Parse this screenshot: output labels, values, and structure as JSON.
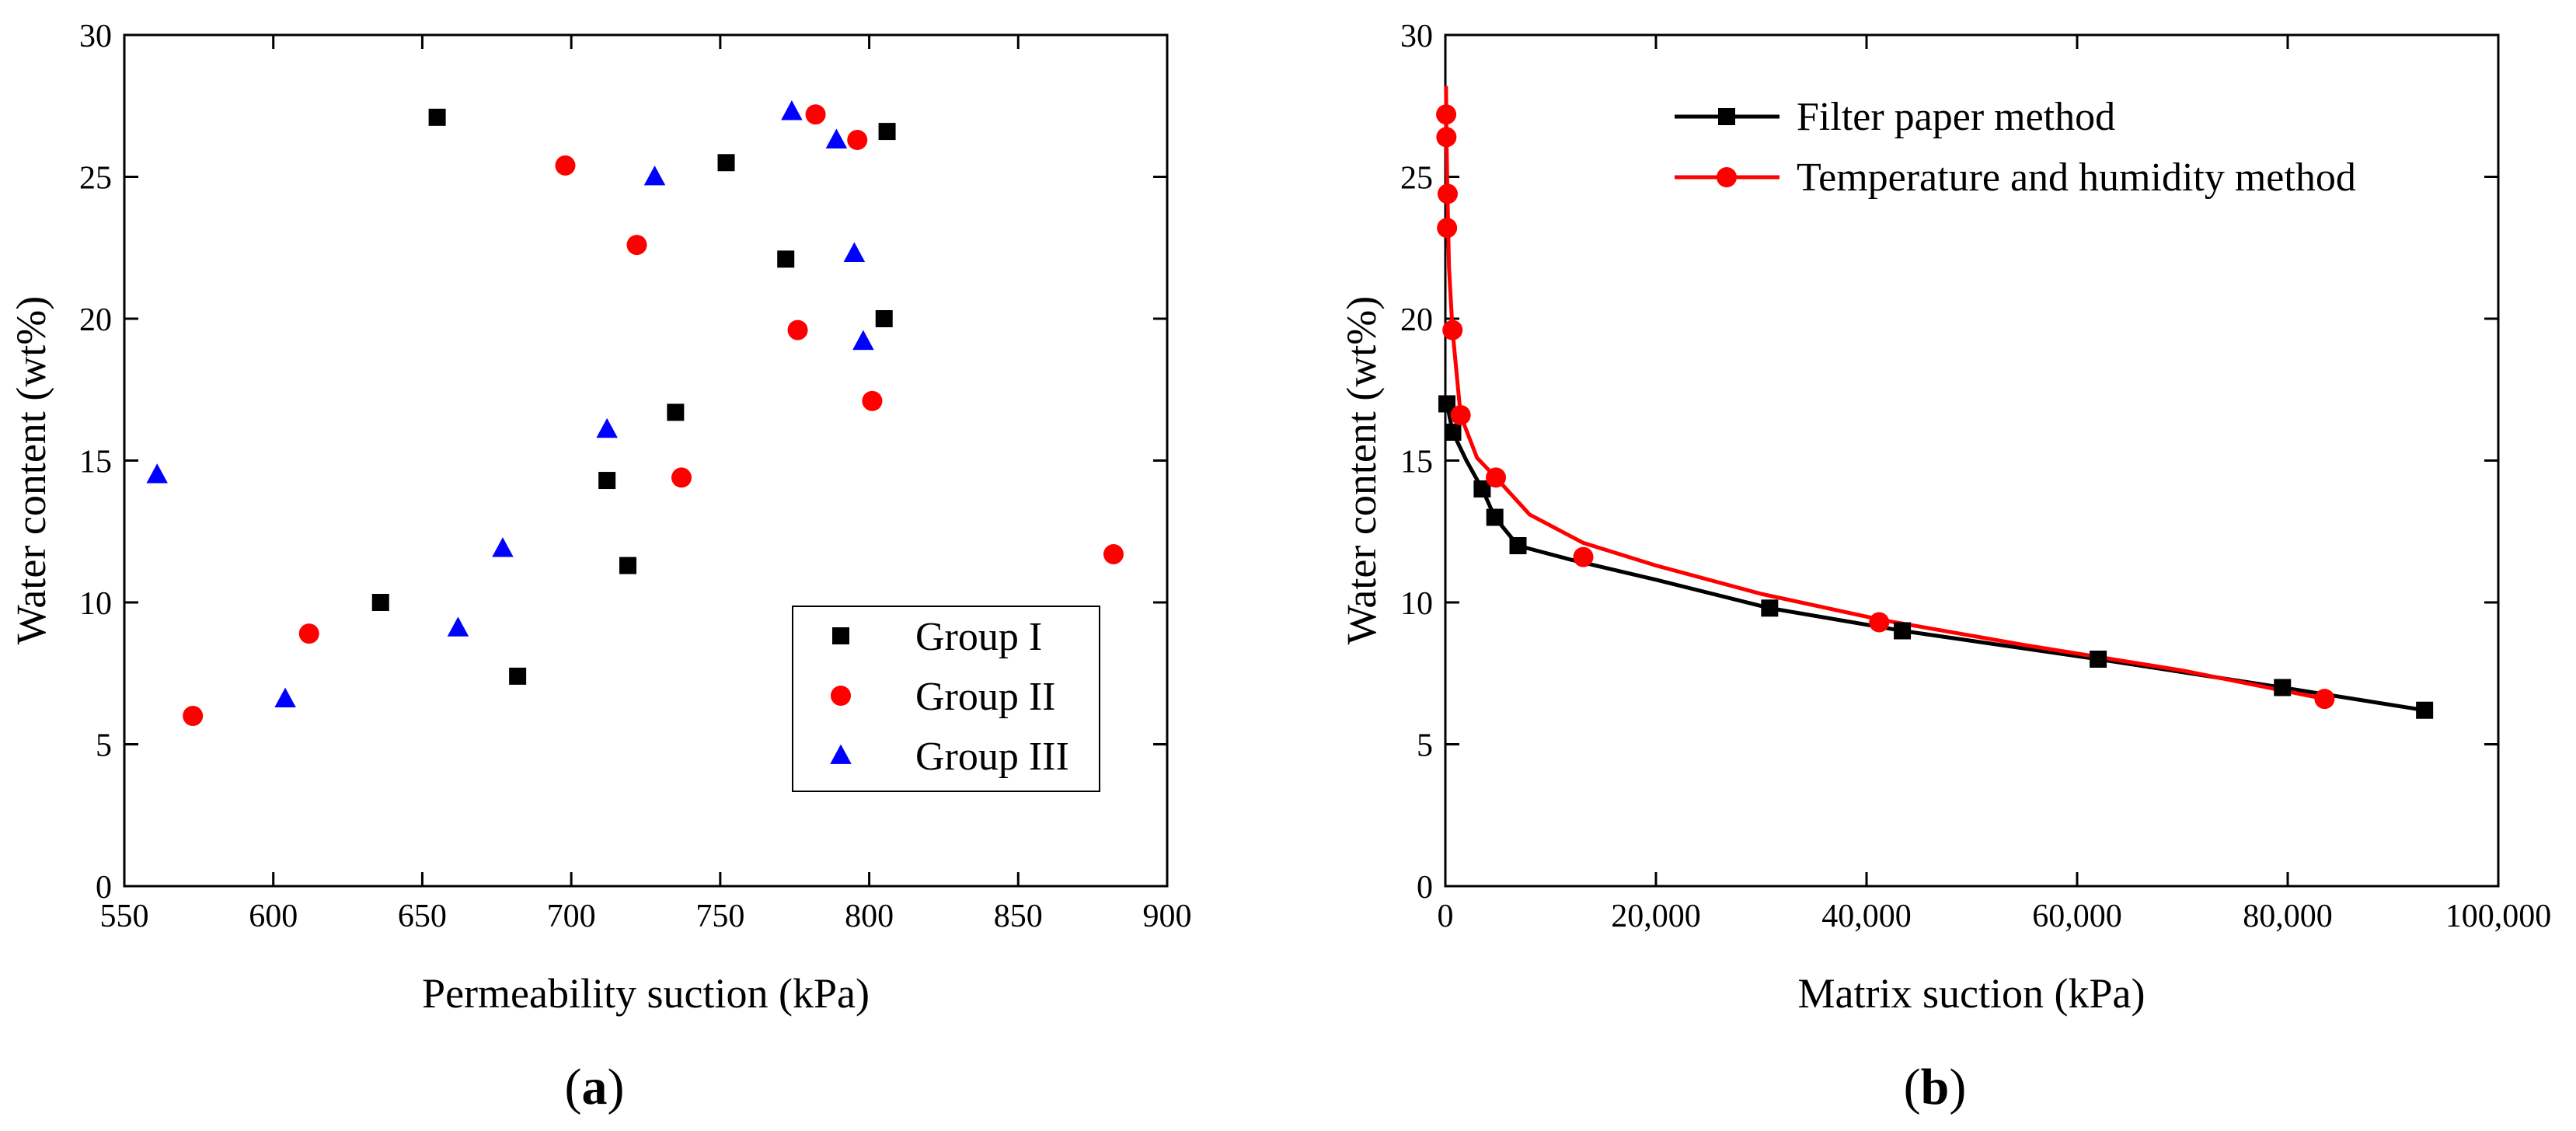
{
  "chart_data": [
    {
      "type": "scatter",
      "panel_label": "(a)",
      "panel_letter": "a",
      "xlabel": "Permeability suction (kPa)",
      "ylabel": "Water content (wt%)",
      "xlim": [
        550,
        900
      ],
      "ylim": [
        0,
        30
      ],
      "xticks": [
        550,
        600,
        650,
        700,
        750,
        800,
        850,
        900
      ],
      "yticks": [
        0,
        5,
        10,
        15,
        20,
        25,
        30
      ],
      "grid": false,
      "legend_position": "bottom-right",
      "series": [
        {
          "name": "Group I",
          "marker": "square",
          "color": "#000000",
          "points": [
            [
              655,
              27.1
            ],
            [
              752,
              25.5
            ],
            [
              806,
              26.6
            ],
            [
              772,
              22.1
            ],
            [
              805,
              20.0
            ],
            [
              735,
              16.7
            ],
            [
              712,
              14.3
            ],
            [
              719,
              11.3
            ],
            [
              636,
              10.0
            ],
            [
              682,
              7.4
            ]
          ]
        },
        {
          "name": "Group II",
          "marker": "circle",
          "color": "#ff0000",
          "points": [
            [
              782,
              27.2
            ],
            [
              796,
              26.3
            ],
            [
              698,
              25.4
            ],
            [
              722,
              22.6
            ],
            [
              776,
              19.6
            ],
            [
              801,
              17.1
            ],
            [
              737,
              14.4
            ],
            [
              882,
              11.7
            ],
            [
              612,
              8.9
            ],
            [
              573,
              6.0
            ]
          ]
        },
        {
          "name": "Group III",
          "marker": "triangle",
          "color": "#0000ff",
          "points": [
            [
              774,
              27.3
            ],
            [
              789,
              26.3
            ],
            [
              728,
              25.0
            ],
            [
              795,
              22.3
            ],
            [
              798,
              19.2
            ],
            [
              712,
              16.1
            ],
            [
              561,
              14.5
            ],
            [
              677,
              11.9
            ],
            [
              662,
              9.1
            ],
            [
              604,
              6.6
            ]
          ]
        }
      ]
    },
    {
      "type": "line",
      "panel_label": "(b)",
      "panel_letter": "b",
      "xlabel": "Matrix suction (kPa)",
      "ylabel": "Water content (wt%)",
      "xlim": [
        0,
        100000
      ],
      "ylim": [
        0,
        30
      ],
      "xticks": [
        0,
        20000,
        40000,
        60000,
        80000,
        100000
      ],
      "xtick_labels": [
        "0",
        "20,000",
        "40,000",
        "60,000",
        "80,000",
        "100,000"
      ],
      "yticks": [
        0,
        5,
        10,
        15,
        20,
        25,
        30
      ],
      "grid": false,
      "legend_position": "top-right",
      "series": [
        {
          "name": "Filter paper method",
          "marker": "square",
          "color": "#000000",
          "points": [
            [
              150,
              17.0
            ],
            [
              700,
              16.0
            ],
            [
              3500,
              14.0
            ],
            [
              4700,
              13.0
            ],
            [
              6900,
              12.0
            ],
            [
              30800,
              9.8
            ],
            [
              43400,
              9.0
            ],
            [
              62000,
              8.0
            ],
            [
              79500,
              7.0
            ],
            [
              93000,
              6.2
            ]
          ],
          "curve": [
            [
              150,
              17.0
            ],
            [
              700,
              16.0
            ],
            [
              2000,
              15.0
            ],
            [
              3500,
              14.0
            ],
            [
              4700,
              13.0
            ],
            [
              6900,
              12.0
            ],
            [
              12000,
              11.5
            ],
            [
              20000,
              10.8
            ],
            [
              30800,
              9.8
            ],
            [
              43400,
              9.0
            ],
            [
              62000,
              8.0
            ],
            [
              79500,
              7.0
            ],
            [
              93000,
              6.2
            ]
          ]
        },
        {
          "name": "Temperature and humidity method",
          "marker": "circle",
          "color": "#ff0000",
          "points": [
            [
              80,
              27.2
            ],
            [
              100,
              26.4
            ],
            [
              220,
              24.4
            ],
            [
              160,
              23.2
            ],
            [
              680,
              19.6
            ],
            [
              1450,
              16.6
            ],
            [
              4800,
              14.4
            ],
            [
              13100,
              11.6
            ],
            [
              41200,
              9.3
            ],
            [
              83500,
              6.6
            ]
          ],
          "curve": [
            [
              60,
              28.2
            ],
            [
              100,
              26.4
            ],
            [
              200,
              24.4
            ],
            [
              350,
              21.8
            ],
            [
              680,
              19.6
            ],
            [
              1450,
              16.6
            ],
            [
              3000,
              15.1
            ],
            [
              4800,
              14.4
            ],
            [
              8000,
              13.1
            ],
            [
              13100,
              12.1
            ],
            [
              20000,
              11.3
            ],
            [
              30000,
              10.3
            ],
            [
              41200,
              9.4
            ],
            [
              55000,
              8.5
            ],
            [
              70000,
              7.6
            ],
            [
              83500,
              6.6
            ]
          ]
        }
      ]
    }
  ]
}
